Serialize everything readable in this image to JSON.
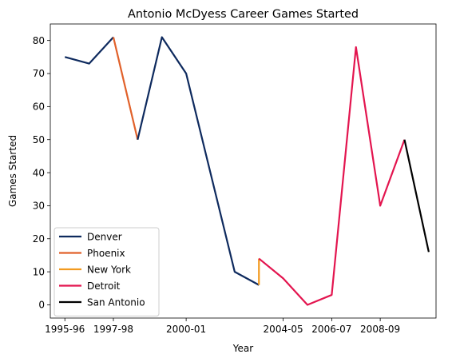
{
  "chart_data": {
    "type": "line",
    "title": "Antonio McDyess Career Games Started",
    "xlabel": "Year",
    "ylabel": "Games Started",
    "x_ticks": [
      "1995-96",
      "1997-98",
      "2000-01",
      "2004-05",
      "2006-07",
      "2008-09"
    ],
    "ylim": [
      -4,
      85
    ],
    "y_ticks": [
      0,
      10,
      20,
      30,
      40,
      50,
      60,
      70,
      80
    ],
    "grid": false,
    "legend_position": "bottom-left",
    "series": [
      {
        "name": "Denver",
        "color": "#0e2a5e",
        "points": [
          [
            "1995-96",
            75
          ],
          [
            "1996-97",
            73
          ],
          [
            "1997-98",
            81
          ]
        ]
      },
      {
        "name": "Phoenix",
        "color": "#e1612a",
        "points": [
          [
            "1997-98",
            81
          ],
          [
            "1998-99",
            50
          ]
        ]
      },
      {
        "name": "Denver",
        "color": "#0e2a5e",
        "points": [
          [
            "1998-99",
            50
          ],
          [
            "1999-00",
            81
          ],
          [
            "2000-01",
            70
          ],
          [
            "2002-03",
            10
          ],
          [
            "2003-04",
            6
          ]
        ]
      },
      {
        "name": "New York",
        "color": "#f29a1f",
        "points": [
          [
            "2003-04",
            6
          ],
          [
            "2003-04",
            14
          ]
        ]
      },
      {
        "name": "Detroit",
        "color": "#e3154f",
        "points": [
          [
            "2003-04",
            14
          ],
          [
            "2004-05",
            8
          ],
          [
            "2005-06",
            0
          ],
          [
            "2006-07",
            3
          ],
          [
            "2007-08",
            78
          ],
          [
            "2008-09",
            30
          ],
          [
            "2009-10",
            50
          ]
        ]
      },
      {
        "name": "San Antonio",
        "color": "#000000",
        "points": [
          [
            "2009-10",
            50
          ],
          [
            "2010-11",
            16
          ]
        ]
      }
    ],
    "legend": [
      {
        "name": "Denver",
        "color": "#0e2a5e"
      },
      {
        "name": "Phoenix",
        "color": "#e1612a"
      },
      {
        "name": "New York",
        "color": "#f29a1f"
      },
      {
        "name": "Detroit",
        "color": "#e3154f"
      },
      {
        "name": "San Antonio",
        "color": "#000000"
      }
    ]
  }
}
